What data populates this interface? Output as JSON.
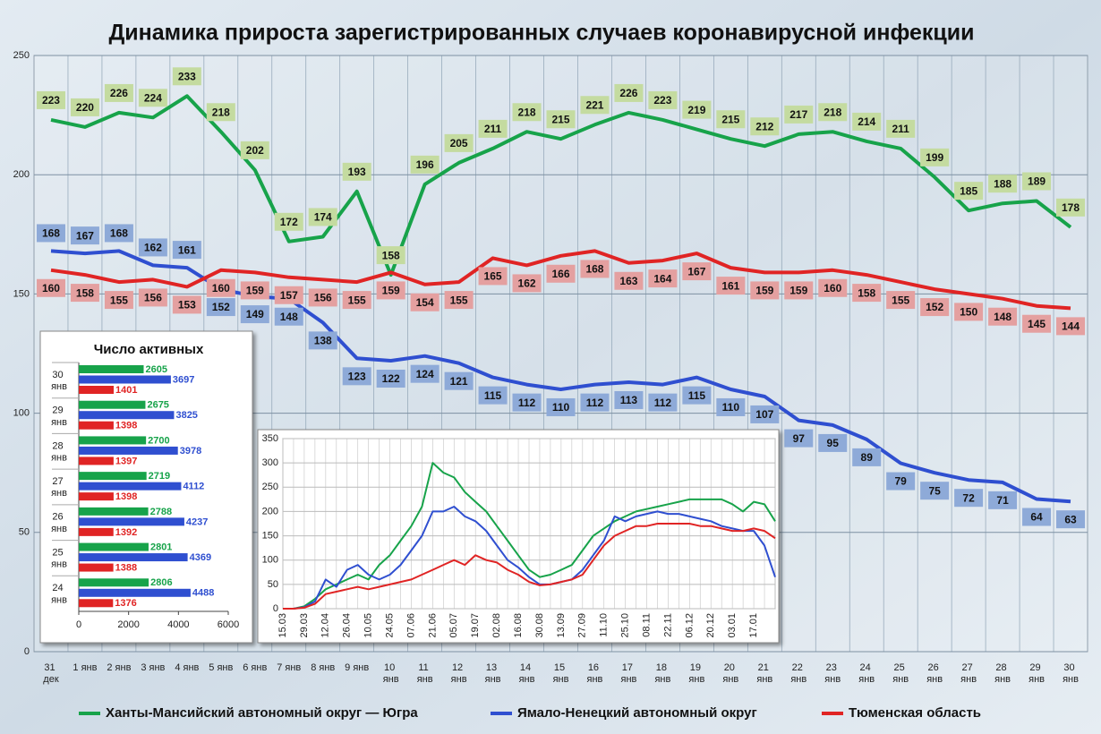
{
  "chart_data": [
    {
      "type": "line",
      "title": "Динамика прироста зарегистрированных случаев коронавирусной инфекции",
      "categories": [
        "31 дек",
        "1 янв",
        "2 янв",
        "3 янв",
        "4 янв",
        "5 янв",
        "6 янв",
        "7 янв",
        "8 янв",
        "9 янв",
        "10 янв",
        "11 янв",
        "12 янв",
        "13 янв",
        "14 янв",
        "15 янв",
        "16 янв",
        "17 янв",
        "18 янв",
        "19 янв",
        "20 янв",
        "21 янв",
        "22 янв",
        "23 янв",
        "24 янв",
        "25 янв",
        "26 янв",
        "27 янв",
        "28 янв",
        "29 янв",
        "30 янв"
      ],
      "series": [
        {
          "name": "Ханты-Мансийский автономный округ — Югра",
          "color": "#17a34a",
          "values": [
            223,
            220,
            226,
            224,
            233,
            218,
            202,
            172,
            174,
            193,
            158,
            196,
            205,
            211,
            218,
            215,
            221,
            226,
            223,
            219,
            215,
            212,
            217,
            218,
            214,
            211,
            199,
            185,
            188,
            189,
            178
          ]
        },
        {
          "name": "Ямало-Ненецкий автономный округ",
          "color": "#2f4fd0",
          "values": [
            168,
            167,
            168,
            162,
            161,
            152,
            149,
            148,
            138,
            123,
            122,
            124,
            121,
            115,
            112,
            110,
            112,
            113,
            112,
            115,
            110,
            107,
            97,
            95,
            89,
            79,
            75,
            72,
            71,
            64,
            63
          ]
        },
        {
          "name": "Тюменская область",
          "color": "#e02424",
          "values": [
            160,
            158,
            155,
            156,
            153,
            160,
            159,
            157,
            156,
            155,
            159,
            154,
            155,
            165,
            162,
            166,
            168,
            163,
            164,
            167,
            161,
            159,
            159,
            160,
            158,
            155,
            152,
            150,
            148,
            145,
            144
          ]
        }
      ],
      "ylim": [
        0,
        250
      ],
      "yticks": [
        0,
        50,
        100,
        150,
        200,
        250
      ],
      "grid": true,
      "legend": "bottom",
      "data_labels": true
    },
    {
      "type": "hbar",
      "title": "Число активных",
      "categories": [
        "30 янв",
        "29 янв",
        "28 янв",
        "27 янв",
        "26 янв",
        "25 янв",
        "24 янв"
      ],
      "series": [
        {
          "color": "#17a34a",
          "values": [
            2605,
            2675,
            2700,
            2719,
            2788,
            2801,
            2806
          ]
        },
        {
          "color": "#2f4fd0",
          "values": [
            3697,
            3825,
            3978,
            4112,
            4237,
            4369,
            4488
          ]
        },
        {
          "color": "#e02424",
          "values": [
            1401,
            1398,
            1397,
            1398,
            1392,
            1388,
            1376
          ]
        }
      ],
      "xlim": [
        0,
        6000
      ],
      "xticks": [
        0,
        2000,
        4000,
        6000
      ],
      "data_labels": true
    },
    {
      "type": "line",
      "categories": [
        "15.03",
        null,
        "29.03",
        null,
        "12.04",
        null,
        "26.04",
        null,
        "10.05",
        null,
        "24.05",
        null,
        "07.06",
        null,
        "21.06",
        null,
        "05.07",
        null,
        "19.07",
        null,
        "02.08",
        null,
        "16.08",
        null,
        "30.08",
        null,
        "13.09",
        null,
        "27.09",
        null,
        "11.10",
        null,
        "25.10",
        null,
        "08.11",
        null,
        "22.11",
        null,
        "06.12",
        null,
        "20.12",
        null,
        "03.01",
        null,
        "17.01",
        null,
        null
      ],
      "series": [
        {
          "color": "#17a34a",
          "values": [
            0,
            0,
            5,
            20,
            40,
            50,
            60,
            70,
            60,
            90,
            110,
            140,
            170,
            210,
            300,
            280,
            270,
            240,
            220,
            200,
            170,
            140,
            110,
            80,
            65,
            70,
            80,
            90,
            120,
            150,
            165,
            180,
            190,
            200,
            205,
            210,
            215,
            220,
            225,
            225,
            225,
            225,
            215,
            200,
            220,
            215,
            180
          ]
        },
        {
          "color": "#2f4fd0",
          "values": [
            0,
            0,
            3,
            15,
            60,
            45,
            80,
            90,
            70,
            60,
            70,
            90,
            120,
            150,
            200,
            200,
            210,
            190,
            180,
            160,
            130,
            100,
            85,
            65,
            50,
            50,
            55,
            60,
            80,
            110,
            140,
            190,
            180,
            190,
            195,
            200,
            195,
            195,
            190,
            185,
            180,
            170,
            165,
            160,
            160,
            130,
            65
          ]
        },
        {
          "color": "#e02424",
          "values": [
            0,
            0,
            2,
            10,
            30,
            35,
            40,
            45,
            40,
            45,
            50,
            55,
            60,
            70,
            80,
            90,
            100,
            90,
            110,
            100,
            95,
            80,
            70,
            55,
            48,
            50,
            55,
            60,
            70,
            100,
            130,
            150,
            160,
            170,
            170,
            175,
            175,
            175,
            175,
            170,
            170,
            165,
            160,
            160,
            165,
            160,
            145
          ]
        }
      ],
      "ylim": [
        0,
        350
      ],
      "yticks": [
        0,
        50,
        100,
        150,
        200,
        250,
        300,
        350
      ],
      "grid": true
    }
  ]
}
